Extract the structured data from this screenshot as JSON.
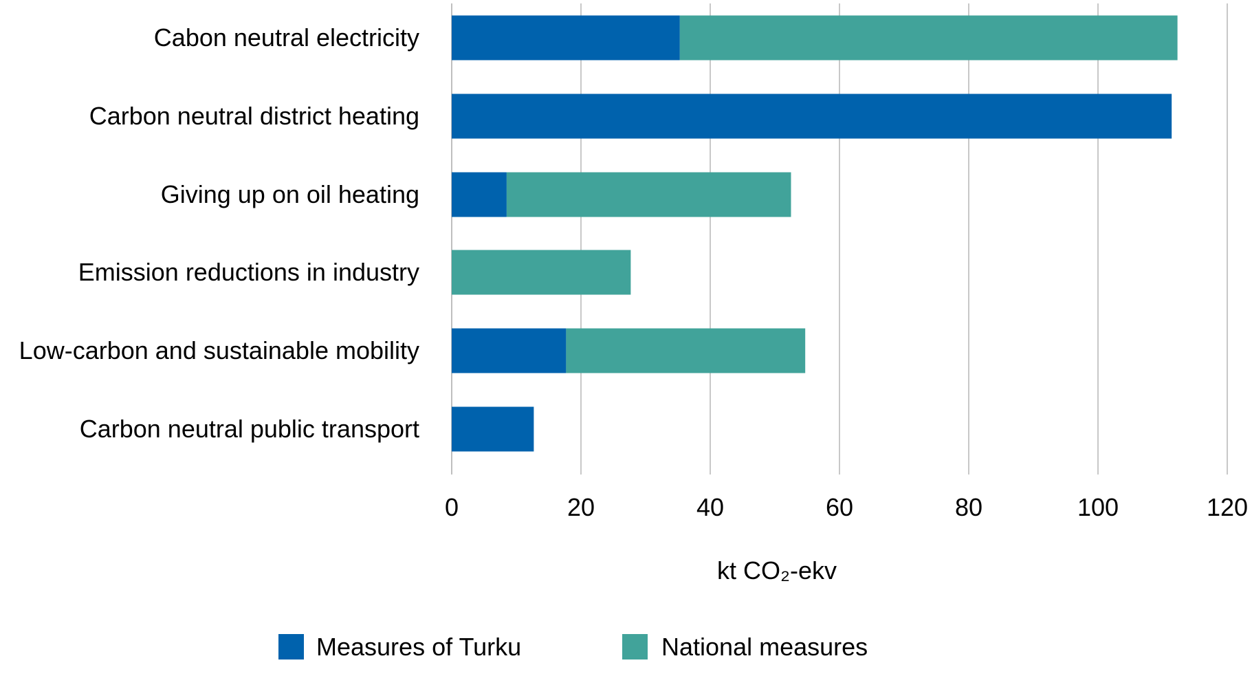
{
  "chart_data": {
    "type": "bar",
    "orientation": "horizontal",
    "stacked": true,
    "categories": [
      "Cabon neutral electricity",
      "Carbon neutral district heating",
      "Giving up on oil heating",
      "Emission reductions in industry",
      "Low-carbon and sustainable mobility",
      "Carbon neutral public transport"
    ],
    "series": [
      {
        "name": "Measures of Turku",
        "color": "#0062AD",
        "values": [
          35.3,
          111.4,
          8.5,
          0,
          17.7,
          12.7
        ]
      },
      {
        "name": "National measures",
        "color": "#41A39A",
        "values": [
          77.0,
          0,
          44.0,
          27.7,
          37.0,
          0
        ]
      }
    ],
    "xlabel": "kt CO₂-ekv",
    "ylabel": "",
    "xlim": [
      0,
      120
    ],
    "xticks": [
      "0",
      "20",
      "40",
      "60",
      "80",
      "100",
      "120"
    ],
    "grid": true,
    "legend_position": "bottom"
  }
}
